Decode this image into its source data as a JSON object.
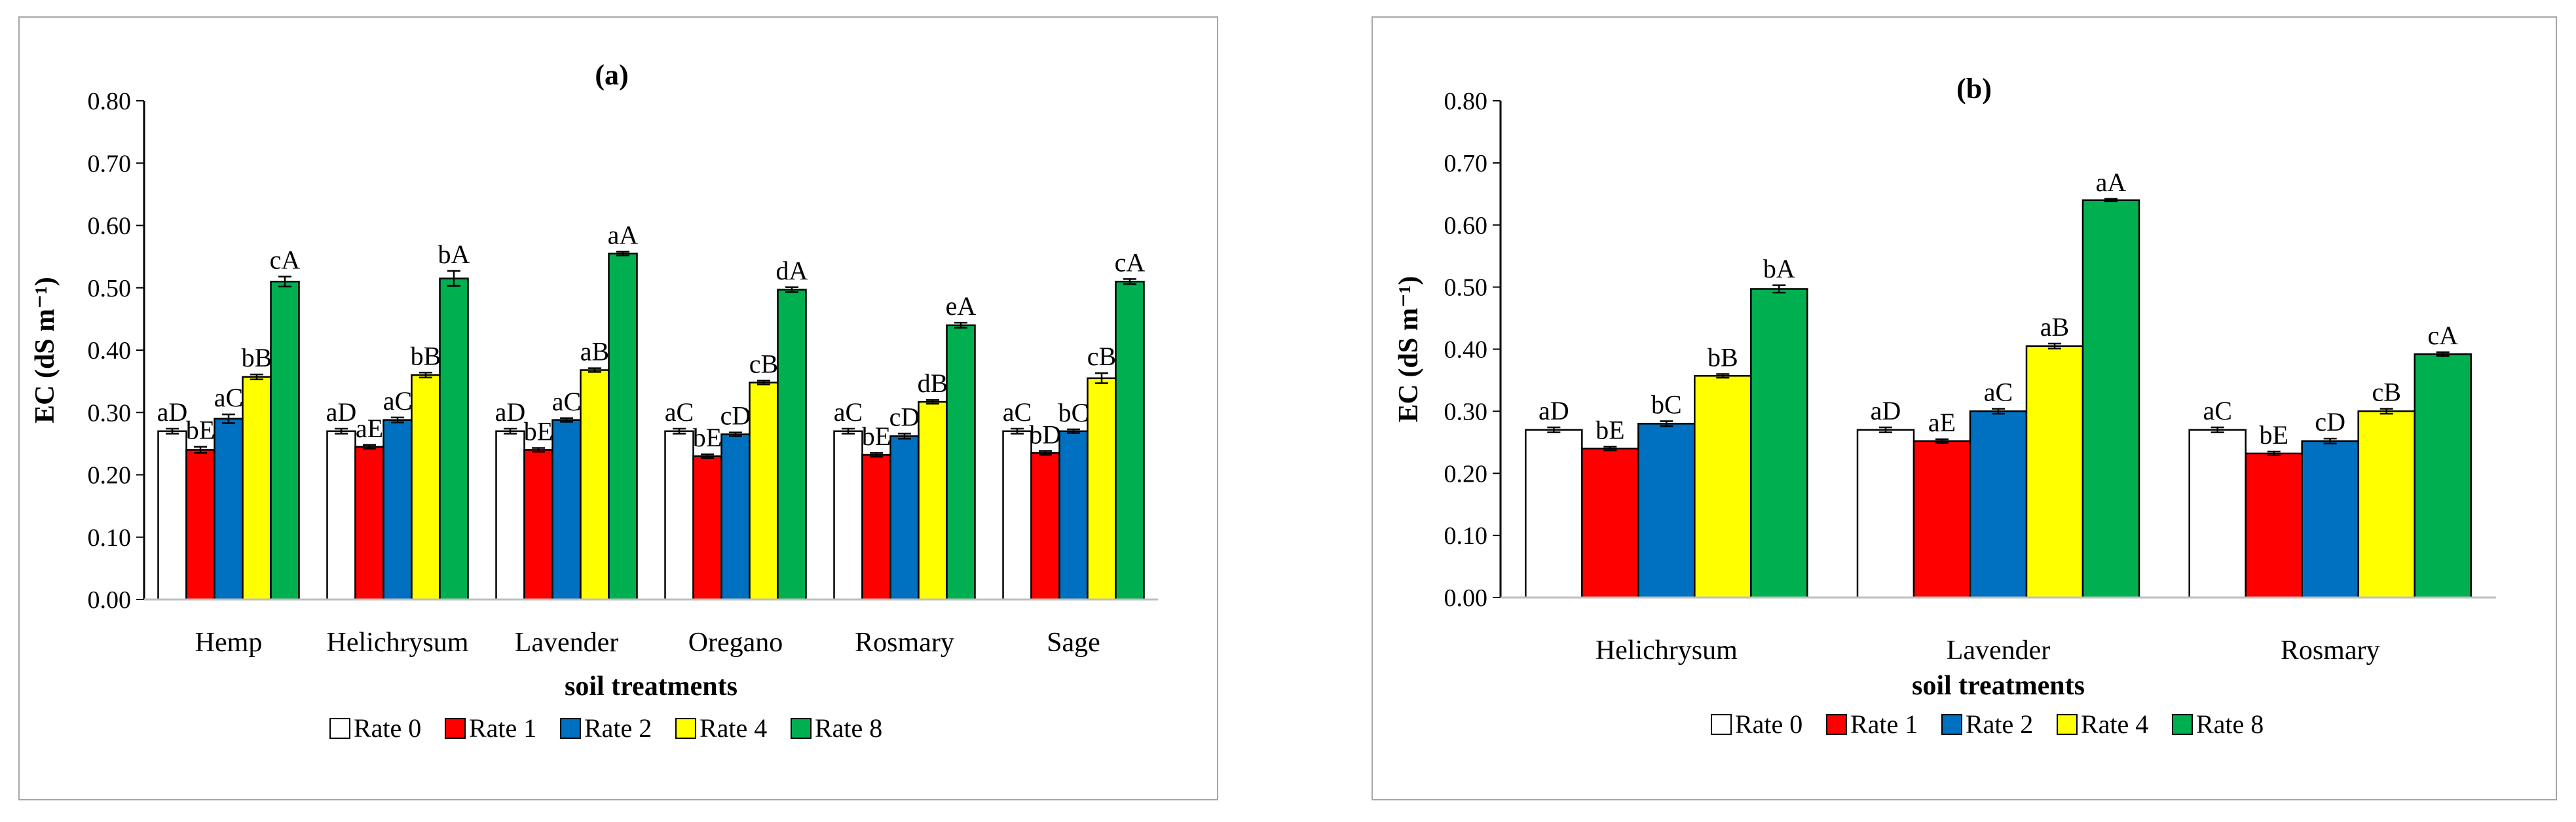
{
  "chart_data": [
    {
      "type": "bar",
      "title": "(a)",
      "xlabel": "soil treatments",
      "ylabel": "EC (dS m⁻¹)",
      "ylim": [
        0,
        0.8
      ],
      "yticks": [
        "0.00",
        "0.10",
        "0.20",
        "0.30",
        "0.40",
        "0.50",
        "0.60",
        "0.70",
        "0.80"
      ],
      "categories": [
        "Hemp",
        "Helichrysum",
        "Lavender",
        "Oregano",
        "Rosmary",
        "Sage"
      ],
      "series": [
        {
          "name": "Rate 0",
          "color": "#ffffff",
          "values": [
            0.27,
            0.27,
            0.27,
            0.27,
            0.27,
            0.27
          ],
          "errors": [
            0.004,
            0.004,
            0.004,
            0.004,
            0.004,
            0.004
          ],
          "labels": [
            "aD",
            "aD",
            "aD",
            "aC",
            "aC",
            "aC"
          ]
        },
        {
          "name": "Rate 1",
          "color": "#ff0000",
          "values": [
            0.24,
            0.245,
            0.24,
            0.23,
            0.232,
            0.235
          ],
          "errors": [
            0.005,
            0.003,
            0.003,
            0.003,
            0.003,
            0.003
          ],
          "labels": [
            "bE",
            "aE",
            "bE",
            "bE",
            "bE",
            "bD"
          ]
        },
        {
          "name": "Rate 2",
          "color": "#0070c0",
          "values": [
            0.29,
            0.288,
            0.288,
            0.265,
            0.262,
            0.27
          ],
          "errors": [
            0.007,
            0.004,
            0.003,
            0.003,
            0.004,
            0.003
          ],
          "labels": [
            "aC",
            "aC",
            "aC",
            "cD",
            "cD",
            "bC"
          ]
        },
        {
          "name": "Rate 4",
          "color": "#ffff00",
          "values": [
            0.357,
            0.36,
            0.368,
            0.348,
            0.317,
            0.355
          ],
          "errors": [
            0.004,
            0.004,
            0.003,
            0.003,
            0.003,
            0.008
          ],
          "labels": [
            "bB",
            "bB",
            "aB",
            "cB",
            "dB",
            "cB"
          ]
        },
        {
          "name": "Rate 8",
          "color": "#00b050",
          "values": [
            0.51,
            0.515,
            0.555,
            0.497,
            0.44,
            0.51
          ],
          "errors": [
            0.008,
            0.012,
            0.003,
            0.004,
            0.004,
            0.004
          ],
          "labels": [
            "cA",
            "bA",
            "aA",
            "dA",
            "eA",
            "cA"
          ]
        }
      ],
      "legend_position": "bottom"
    },
    {
      "type": "bar",
      "title": "(b)",
      "xlabel": "soil treatments",
      "ylabel": "EC (dS m⁻¹)",
      "ylim": [
        0,
        0.8
      ],
      "yticks": [
        "0.00",
        "0.10",
        "0.20",
        "0.30",
        "0.40",
        "0.50",
        "0.60",
        "0.70",
        "0.80"
      ],
      "categories": [
        "Helichrysum",
        "Lavender",
        "Rosmary"
      ],
      "series": [
        {
          "name": "Rate 0",
          "color": "#ffffff",
          "values": [
            0.27,
            0.27,
            0.27
          ],
          "errors": [
            0.004,
            0.004,
            0.004
          ],
          "labels": [
            "aD",
            "aD",
            "aC"
          ]
        },
        {
          "name": "Rate 1",
          "color": "#ff0000",
          "values": [
            0.24,
            0.252,
            0.232
          ],
          "errors": [
            0.003,
            0.003,
            0.003
          ],
          "labels": [
            "bE",
            "aE",
            "bE"
          ]
        },
        {
          "name": "Rate 2",
          "color": "#0070c0",
          "values": [
            0.28,
            0.3,
            0.252
          ],
          "errors": [
            0.004,
            0.004,
            0.004
          ],
          "labels": [
            "bC",
            "aC",
            "cD"
          ]
        },
        {
          "name": "Rate 4",
          "color": "#ffff00",
          "values": [
            0.357,
            0.405,
            0.3
          ],
          "errors": [
            0.003,
            0.004,
            0.004
          ],
          "labels": [
            "bB",
            "aB",
            "cB"
          ]
        },
        {
          "name": "Rate 8",
          "color": "#00b050",
          "values": [
            0.497,
            0.64,
            0.392
          ],
          "errors": [
            0.006,
            0.002,
            0.003
          ],
          "labels": [
            "bA",
            "aA",
            "cA"
          ]
        }
      ],
      "legend_position": "bottom"
    }
  ]
}
